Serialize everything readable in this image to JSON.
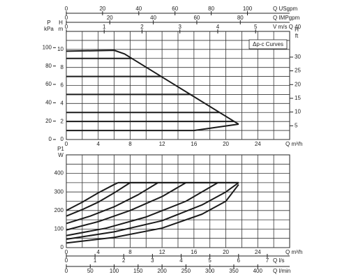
{
  "chart_data": [
    {
      "type": "line",
      "xlabel": "Q m³/h",
      "xlim": [
        0,
        28
      ],
      "xticks": [
        0,
        4,
        8,
        12,
        16,
        20,
        24
      ],
      "minor_xticks": [
        2,
        6,
        10,
        14,
        18,
        22,
        26
      ],
      "ylabel": {
        "name": "H",
        "unit": "m"
      },
      "ylim": [
        0,
        12
      ],
      "yticks": [
        0,
        2,
        4,
        6,
        8,
        10
      ],
      "minor_yticks": [
        1,
        3,
        5,
        7,
        9,
        11
      ],
      "y2label": {
        "name": "H",
        "unit": "ft"
      },
      "y2lim": [
        0,
        39.37
      ],
      "y2ticks": [
        5,
        10,
        15,
        20,
        25,
        30
      ],
      "pressure_axis": {
        "name": "P",
        "unit": "kPa",
        "lim": [
          0,
          117.7
        ],
        "ticks": [
          0,
          20,
          40,
          60,
          80,
          100
        ]
      },
      "top_axes": [
        {
          "label": "Q USgpm",
          "lim": [
            0,
            123.3
          ],
          "ticks": [
            0,
            20,
            40,
            60,
            80,
            100
          ]
        },
        {
          "label": "Q IMPgpm",
          "lim": [
            0,
            102.7
          ],
          "ticks": [
            0,
            20,
            40,
            60,
            80
          ]
        },
        {
          "label": "V m/s Q 40",
          "lim": [
            0,
            5.9
          ],
          "ticks": [
            0,
            1,
            2,
            3,
            4,
            5
          ]
        }
      ],
      "legend_box": "Δp-c Curves",
      "grid": true,
      "series": [
        {
          "color": "#1a1a1a",
          "x": [
            0,
            6,
            7.3,
            21.6
          ],
          "values": [
            9.8,
            9.9,
            9.5,
            1.7
          ]
        },
        {
          "color": "#1a1a1a",
          "x": [
            0,
            8.2
          ],
          "values": [
            9,
            9
          ]
        },
        {
          "color": "#1a1a1a",
          "x": [
            0,
            11.9
          ],
          "values": [
            7,
            7
          ]
        },
        {
          "color": "#1a1a1a",
          "x": [
            0,
            15.6
          ],
          "values": [
            5,
            5
          ]
        },
        {
          "color": "#1a1a1a",
          "x": [
            0,
            19.2
          ],
          "values": [
            3,
            3
          ]
        },
        {
          "color": "#1a1a1a",
          "x": [
            0,
            21.0
          ],
          "values": [
            2,
            2
          ]
        },
        {
          "color": "#1a1a1a",
          "x": [
            0,
            16,
            21.6
          ],
          "values": [
            1,
            1,
            1.7
          ]
        }
      ]
    },
    {
      "type": "line",
      "xlabel": "Q m³/h",
      "xlim": [
        0,
        28
      ],
      "xticks": [
        0,
        4,
        8,
        12,
        16,
        20,
        24
      ],
      "minor_xticks": [
        2,
        6,
        10,
        14,
        18,
        22,
        26
      ],
      "ylabel": {
        "name": "P1",
        "unit": "W"
      },
      "ylim": [
        0,
        500
      ],
      "yticks": [
        0,
        100,
        200,
        300,
        400
      ],
      "minor_yticks": [
        50,
        150,
        250,
        350,
        450
      ],
      "bottom_axes": [
        {
          "label": "Q l/s",
          "lim": [
            0,
            7.78
          ],
          "ticks": [
            0,
            1,
            2,
            3,
            4,
            5,
            6,
            7
          ]
        },
        {
          "label": "Q l/min",
          "lim": [
            0,
            466.7
          ],
          "ticks": [
            0,
            50,
            100,
            150,
            200,
            250,
            300,
            350,
            400
          ]
        }
      ],
      "grid": true,
      "series": [
        {
          "color": "#1a1a1a",
          "x": [
            0,
            2,
            4,
            6,
            6.5,
            21.6
          ],
          "values": [
            200,
            245,
            295,
            340,
            350,
            350
          ]
        },
        {
          "color": "#1a1a1a",
          "x": [
            0,
            2,
            4,
            6,
            8,
            21.6
          ],
          "values": [
            170,
            205,
            245,
            295,
            350,
            350
          ]
        },
        {
          "color": "#1a1a1a",
          "x": [
            0,
            3,
            6,
            9,
            11.5
          ],
          "values": [
            130,
            170,
            220,
            285,
            350
          ]
        },
        {
          "color": "#1a1a1a",
          "x": [
            0,
            4,
            8,
            12,
            15
          ],
          "values": [
            95,
            140,
            200,
            275,
            350
          ]
        },
        {
          "color": "#1a1a1a",
          "x": [
            0,
            5,
            10,
            15,
            19
          ],
          "values": [
            65,
            105,
            165,
            250,
            350
          ]
        },
        {
          "color": "#1a1a1a",
          "x": [
            0,
            6,
            12,
            17,
            20,
            21.6
          ],
          "values": [
            45,
            85,
            145,
            230,
            300,
            350
          ]
        },
        {
          "color": "#1a1a1a",
          "x": [
            0,
            6,
            12,
            17,
            20,
            21.6
          ],
          "values": [
            25,
            55,
            105,
            180,
            250,
            340
          ]
        }
      ]
    }
  ]
}
